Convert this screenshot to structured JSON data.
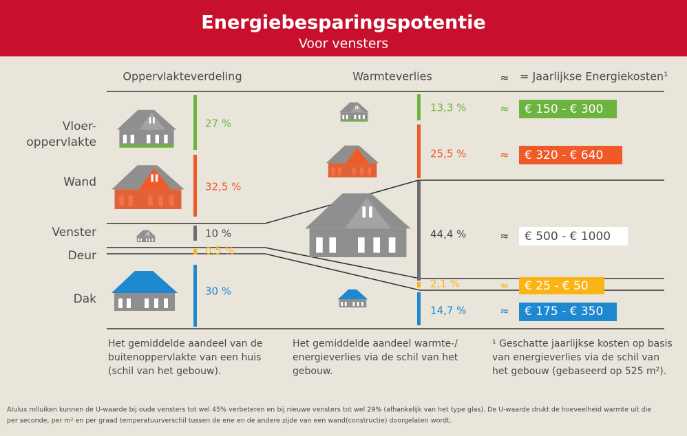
{
  "header": {
    "title": "Energiebesparingspotentie",
    "subtitle": "Voor vensters"
  },
  "columns": {
    "surface": "Oppervlakteverdeling",
    "heat_loss": "Warmteverlies",
    "approx": "≈",
    "costs": "= Jaarlijkse Energiekosten¹"
  },
  "surface_rows": [
    {
      "label_lines": [
        "Vloer-",
        "oppervlakte"
      ],
      "share": "27 %"
    },
    {
      "label_lines": [
        "Wand"
      ],
      "share": "32,5 %"
    },
    {
      "label_lines": [
        "Venster"
      ],
      "share": "10 %"
    },
    {
      "label_lines": [
        "Deur"
      ],
      "share": "0,5 %"
    },
    {
      "label_lines": [
        "Dak"
      ],
      "share": "30 %"
    }
  ],
  "heat_loss_rows": [
    {
      "share": "13,3 %",
      "cost": "€ 150 - € 300"
    },
    {
      "share": "25,5 %",
      "cost": "€ 320 - € 640"
    },
    {
      "share": "44,4 %",
      "cost": "€ 500 - € 1000"
    },
    {
      "share": "2,1 %",
      "cost": "€ 25 - € 50"
    },
    {
      "share": "14,7 %",
      "cost": "€ 175 - € 350"
    }
  ],
  "notes": {
    "surface": [
      "Het gemiddelde aandeel van de",
      "buitenoppervlakte van een huis",
      "(schil van het gebouw)."
    ],
    "heat_loss": [
      "Het gemiddelde aandeel warmte-/",
      "energieverlies via de schil van het",
      "gebouw."
    ],
    "costs": [
      "¹ Geschatte jaarlijkse kosten op basis",
      "van energieverlies via de schil van",
      "het gebouw (gebaseerd op 525 m²)."
    ]
  },
  "footnote": [
    "Alulux rolluiken kunnen de U-waarde bij oude vensters tot wel 45% verbeteren en bij nieuwe vensters tot wel 29% (afhankelijk van het type glas). De U-waarde drukt de hoeveelheid warmte uit die",
    "per seconde, per m² en per graad temperatuurverschil tussen de ene en de andere zijde van een wand(constructie) doorgelaten wordt."
  ]
}
